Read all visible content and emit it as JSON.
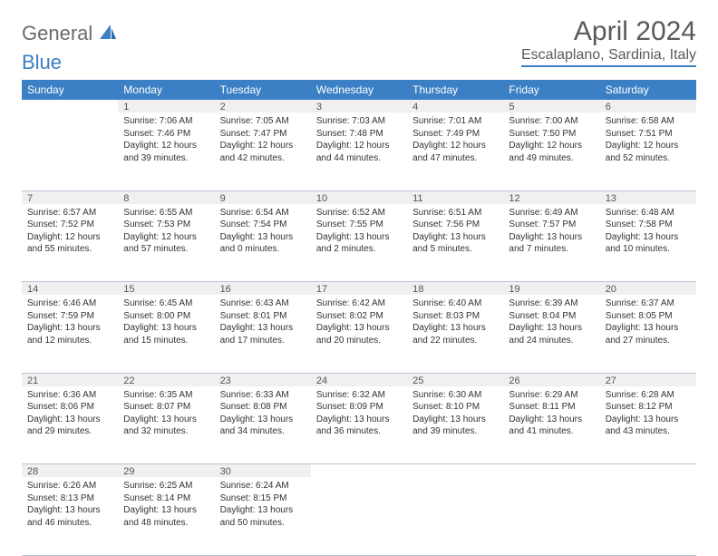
{
  "logo": {
    "text1": "General",
    "text2": "Blue"
  },
  "title": "April 2024",
  "location": "Escalaplano, Sardinia, Italy",
  "day_headers": [
    "Sunday",
    "Monday",
    "Tuesday",
    "Wednesday",
    "Thursday",
    "Friday",
    "Saturday"
  ],
  "colors": {
    "accent": "#3b7fc4",
    "header_text": "#ffffff",
    "daynum_bg": "#f0f0f0",
    "border": "#b8c4d4"
  },
  "weeks": [
    {
      "nums": [
        "",
        "1",
        "2",
        "3",
        "4",
        "5",
        "6"
      ],
      "cells": [
        {
          "lines": []
        },
        {
          "lines": [
            "Sunrise: 7:06 AM",
            "Sunset: 7:46 PM",
            "Daylight: 12 hours",
            "and 39 minutes."
          ]
        },
        {
          "lines": [
            "Sunrise: 7:05 AM",
            "Sunset: 7:47 PM",
            "Daylight: 12 hours",
            "and 42 minutes."
          ]
        },
        {
          "lines": [
            "Sunrise: 7:03 AM",
            "Sunset: 7:48 PM",
            "Daylight: 12 hours",
            "and 44 minutes."
          ]
        },
        {
          "lines": [
            "Sunrise: 7:01 AM",
            "Sunset: 7:49 PM",
            "Daylight: 12 hours",
            "and 47 minutes."
          ]
        },
        {
          "lines": [
            "Sunrise: 7:00 AM",
            "Sunset: 7:50 PM",
            "Daylight: 12 hours",
            "and 49 minutes."
          ]
        },
        {
          "lines": [
            "Sunrise: 6:58 AM",
            "Sunset: 7:51 PM",
            "Daylight: 12 hours",
            "and 52 minutes."
          ]
        }
      ]
    },
    {
      "nums": [
        "7",
        "8",
        "9",
        "10",
        "11",
        "12",
        "13"
      ],
      "cells": [
        {
          "lines": [
            "Sunrise: 6:57 AM",
            "Sunset: 7:52 PM",
            "Daylight: 12 hours",
            "and 55 minutes."
          ]
        },
        {
          "lines": [
            "Sunrise: 6:55 AM",
            "Sunset: 7:53 PM",
            "Daylight: 12 hours",
            "and 57 minutes."
          ]
        },
        {
          "lines": [
            "Sunrise: 6:54 AM",
            "Sunset: 7:54 PM",
            "Daylight: 13 hours",
            "and 0 minutes."
          ]
        },
        {
          "lines": [
            "Sunrise: 6:52 AM",
            "Sunset: 7:55 PM",
            "Daylight: 13 hours",
            "and 2 minutes."
          ]
        },
        {
          "lines": [
            "Sunrise: 6:51 AM",
            "Sunset: 7:56 PM",
            "Daylight: 13 hours",
            "and 5 minutes."
          ]
        },
        {
          "lines": [
            "Sunrise: 6:49 AM",
            "Sunset: 7:57 PM",
            "Daylight: 13 hours",
            "and 7 minutes."
          ]
        },
        {
          "lines": [
            "Sunrise: 6:48 AM",
            "Sunset: 7:58 PM",
            "Daylight: 13 hours",
            "and 10 minutes."
          ]
        }
      ]
    },
    {
      "nums": [
        "14",
        "15",
        "16",
        "17",
        "18",
        "19",
        "20"
      ],
      "cells": [
        {
          "lines": [
            "Sunrise: 6:46 AM",
            "Sunset: 7:59 PM",
            "Daylight: 13 hours",
            "and 12 minutes."
          ]
        },
        {
          "lines": [
            "Sunrise: 6:45 AM",
            "Sunset: 8:00 PM",
            "Daylight: 13 hours",
            "and 15 minutes."
          ]
        },
        {
          "lines": [
            "Sunrise: 6:43 AM",
            "Sunset: 8:01 PM",
            "Daylight: 13 hours",
            "and 17 minutes."
          ]
        },
        {
          "lines": [
            "Sunrise: 6:42 AM",
            "Sunset: 8:02 PM",
            "Daylight: 13 hours",
            "and 20 minutes."
          ]
        },
        {
          "lines": [
            "Sunrise: 6:40 AM",
            "Sunset: 8:03 PM",
            "Daylight: 13 hours",
            "and 22 minutes."
          ]
        },
        {
          "lines": [
            "Sunrise: 6:39 AM",
            "Sunset: 8:04 PM",
            "Daylight: 13 hours",
            "and 24 minutes."
          ]
        },
        {
          "lines": [
            "Sunrise: 6:37 AM",
            "Sunset: 8:05 PM",
            "Daylight: 13 hours",
            "and 27 minutes."
          ]
        }
      ]
    },
    {
      "nums": [
        "21",
        "22",
        "23",
        "24",
        "25",
        "26",
        "27"
      ],
      "cells": [
        {
          "lines": [
            "Sunrise: 6:36 AM",
            "Sunset: 8:06 PM",
            "Daylight: 13 hours",
            "and 29 minutes."
          ]
        },
        {
          "lines": [
            "Sunrise: 6:35 AM",
            "Sunset: 8:07 PM",
            "Daylight: 13 hours",
            "and 32 minutes."
          ]
        },
        {
          "lines": [
            "Sunrise: 6:33 AM",
            "Sunset: 8:08 PM",
            "Daylight: 13 hours",
            "and 34 minutes."
          ]
        },
        {
          "lines": [
            "Sunrise: 6:32 AM",
            "Sunset: 8:09 PM",
            "Daylight: 13 hours",
            "and 36 minutes."
          ]
        },
        {
          "lines": [
            "Sunrise: 6:30 AM",
            "Sunset: 8:10 PM",
            "Daylight: 13 hours",
            "and 39 minutes."
          ]
        },
        {
          "lines": [
            "Sunrise: 6:29 AM",
            "Sunset: 8:11 PM",
            "Daylight: 13 hours",
            "and 41 minutes."
          ]
        },
        {
          "lines": [
            "Sunrise: 6:28 AM",
            "Sunset: 8:12 PM",
            "Daylight: 13 hours",
            "and 43 minutes."
          ]
        }
      ]
    },
    {
      "nums": [
        "28",
        "29",
        "30",
        "",
        "",
        "",
        ""
      ],
      "cells": [
        {
          "lines": [
            "Sunrise: 6:26 AM",
            "Sunset: 8:13 PM",
            "Daylight: 13 hours",
            "and 46 minutes."
          ]
        },
        {
          "lines": [
            "Sunrise: 6:25 AM",
            "Sunset: 8:14 PM",
            "Daylight: 13 hours",
            "and 48 minutes."
          ]
        },
        {
          "lines": [
            "Sunrise: 6:24 AM",
            "Sunset: 8:15 PM",
            "Daylight: 13 hours",
            "and 50 minutes."
          ]
        },
        {
          "lines": []
        },
        {
          "lines": []
        },
        {
          "lines": []
        },
        {
          "lines": []
        }
      ]
    }
  ]
}
